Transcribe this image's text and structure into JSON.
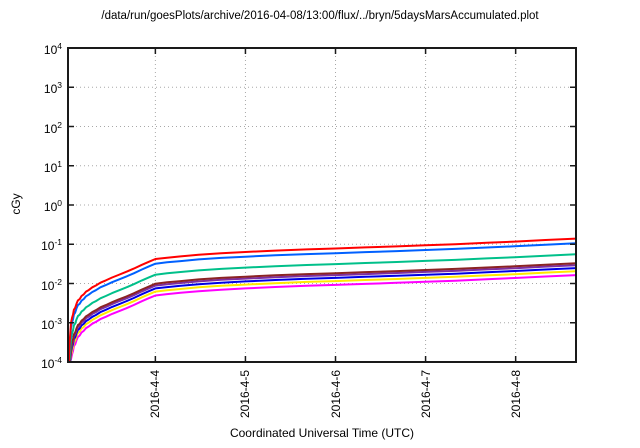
{
  "title": "/data/run/goesPlots/archive/2016-04-08/13:00/flux/../bryn/5daysMarsAccumulated.plot",
  "chart_data": {
    "type": "line",
    "title": "/data/run/goesPlots/archive/2016-04-08/13:00/flux/../bryn/5daysMarsAccumulated.plot",
    "xlabel": "Coordinated Universal Time (UTC)",
    "ylabel": "cGy",
    "y_scale": "log",
    "ylim": [
      0.0001,
      10000.0
    ],
    "y_tick_exponents": [
      4,
      3,
      2,
      1,
      0,
      -1,
      -2,
      -3,
      -4
    ],
    "x_ticks": [
      {
        "label": "2016-4-4",
        "t_days": 0.97
      },
      {
        "label": "2016-4-5",
        "t_days": 1.97
      },
      {
        "label": "2016-4-6",
        "t_days": 2.97
      },
      {
        "label": "2016-4-7",
        "t_days": 3.97
      },
      {
        "label": "2016-4-8",
        "t_days": 4.97
      }
    ],
    "xlim_days": [
      0,
      5.64
    ],
    "grid": "dotted",
    "legend": "none",
    "x_days": [
      0.01,
      0.018,
      0.025,
      0.033,
      0.045,
      0.055,
      0.065,
      0.08,
      0.095,
      0.11,
      0.13,
      0.15,
      0.175,
      0.2,
      0.23,
      0.27,
      0.31,
      0.36,
      0.42,
      0.49,
      0.56,
      0.64,
      0.73,
      0.82,
      0.9,
      0.97,
      1.1,
      1.25,
      1.45,
      1.7,
      1.97,
      2.3,
      2.65,
      2.97,
      3.3,
      3.65,
      3.97,
      4.3,
      4.65,
      4.96,
      5.3,
      5.64
    ],
    "series": [
      {
        "name": "red",
        "color": "#ff0000",
        "values": [
          0.0001,
          0.0003,
          0.00055,
          0.001,
          0.00135,
          0.0016,
          0.00215,
          0.0024,
          0.0031,
          0.0037,
          0.004,
          0.0048,
          0.0053,
          0.0062,
          0.0068,
          0.008,
          0.0089,
          0.0105,
          0.012,
          0.0142,
          0.0165,
          0.0195,
          0.024,
          0.03,
          0.036,
          0.042,
          0.0455,
          0.049,
          0.054,
          0.059,
          0.0635,
          0.069,
          0.074,
          0.078,
          0.083,
          0.088,
          0.094,
          0.1,
          0.109,
          0.117,
          0.128,
          0.139
        ]
      },
      {
        "name": "blue",
        "color": "#0060ff",
        "values": [
          7.6e-05,
          0.000228,
          0.000418,
          0.00076,
          0.00103,
          0.00122,
          0.00163,
          0.00182,
          0.00236,
          0.00281,
          0.00304,
          0.00365,
          0.00403,
          0.00471,
          0.00517,
          0.00608,
          0.00676,
          0.00798,
          0.00912,
          0.0108,
          0.0125,
          0.0148,
          0.0182,
          0.0228,
          0.0274,
          0.0319,
          0.0346,
          0.0372,
          0.041,
          0.0448,
          0.0483,
          0.0524,
          0.0562,
          0.0593,
          0.0631,
          0.0669,
          0.0714,
          0.076,
          0.0828,
          0.0889,
          0.0973,
          0.106
        ]
      },
      {
        "name": "green",
        "color": "#00c08a",
        "values": [
          4e-05,
          0.00012,
          0.00022,
          0.0004,
          0.00054,
          0.00064,
          0.00086,
          0.00096,
          0.00124,
          0.00148,
          0.0016,
          0.00192,
          0.00212,
          0.00248,
          0.00272,
          0.0032,
          0.00356,
          0.0042,
          0.0048,
          0.00568,
          0.0066,
          0.0078,
          0.0096,
          0.012,
          0.0144,
          0.0168,
          0.0182,
          0.0196,
          0.0216,
          0.0236,
          0.0254,
          0.0276,
          0.0296,
          0.0312,
          0.0332,
          0.0352,
          0.0376,
          0.04,
          0.0436,
          0.0468,
          0.0512,
          0.0556
        ]
      },
      {
        "name": "dark-red",
        "color": "#8b2323",
        "values": [
          2.35e-05,
          7.05e-05,
          0.000129,
          0.000235,
          0.000317,
          0.000376,
          0.000505,
          0.000564,
          0.000729,
          0.00087,
          0.00094,
          0.00113,
          0.00125,
          0.00146,
          0.0016,
          0.00188,
          0.00209,
          0.00247,
          0.00282,
          0.00334,
          0.00388,
          0.00458,
          0.00564,
          0.00705,
          0.00846,
          0.00987,
          0.0107,
          0.0115,
          0.0127,
          0.0139,
          0.0149,
          0.0162,
          0.0174,
          0.0183,
          0.0195,
          0.0207,
          0.0221,
          0.0235,
          0.0256,
          0.0275,
          0.0301,
          0.0327
        ]
      },
      {
        "name": "purple",
        "color": "#7d2ea0",
        "values": [
          2.1e-05,
          6.3e-05,
          0.000116,
          0.00021,
          0.000284,
          0.000336,
          0.000452,
          0.000504,
          0.000651,
          0.000777,
          0.00084,
          0.00101,
          0.00111,
          0.0013,
          0.00143,
          0.00168,
          0.00187,
          0.00221,
          0.00252,
          0.00298,
          0.00347,
          0.0041,
          0.00504,
          0.0063,
          0.00756,
          0.00882,
          0.00956,
          0.0103,
          0.0113,
          0.0124,
          0.0133,
          0.0145,
          0.0155,
          0.0164,
          0.0174,
          0.0185,
          0.0197,
          0.021,
          0.0229,
          0.0246,
          0.0269,
          0.0292
        ]
      },
      {
        "name": "dark-blue",
        "color": "#0000e6",
        "values": [
          1.78e-05,
          5.34e-05,
          9.79e-05,
          0.000178,
          0.00024,
          0.000285,
          0.000383,
          0.000427,
          0.000552,
          0.000659,
          0.000712,
          0.000854,
          0.000943,
          0.0011,
          0.00121,
          0.00142,
          0.00158,
          0.00187,
          0.00214,
          0.00253,
          0.00294,
          0.00347,
          0.00427,
          0.00534,
          0.00641,
          0.00748,
          0.0081,
          0.00872,
          0.00961,
          0.0105,
          0.0113,
          0.0123,
          0.0132,
          0.0139,
          0.0148,
          0.0157,
          0.0167,
          0.0178,
          0.0194,
          0.0208,
          0.0228,
          0.0247
        ]
      },
      {
        "name": "yellow",
        "color": "#ffe800",
        "values": [
          1.48e-05,
          4.44e-05,
          8.14e-05,
          0.000148,
          0.0002,
          0.000237,
          0.000318,
          0.000355,
          0.000459,
          0.000548,
          0.000592,
          0.00071,
          0.000784,
          0.000918,
          0.00101,
          0.00118,
          0.00132,
          0.00155,
          0.00178,
          0.0021,
          0.00244,
          0.00289,
          0.00355,
          0.00444,
          0.00533,
          0.00622,
          0.00673,
          0.00725,
          0.00799,
          0.00873,
          0.0094,
          0.0102,
          0.011,
          0.0115,
          0.0123,
          0.013,
          0.0139,
          0.0148,
          0.0161,
          0.0173,
          0.0189,
          0.0206
        ]
      },
      {
        "name": "magenta",
        "color": "#ff00ff",
        "values": [
          1.18e-05,
          3.54e-05,
          6.49e-05,
          0.000118,
          0.000159,
          0.000189,
          0.000254,
          0.000283,
          0.000366,
          0.000437,
          0.000472,
          0.000566,
          0.000625,
          0.000732,
          0.000802,
          0.000944,
          0.00105,
          0.00124,
          0.00142,
          0.00168,
          0.00195,
          0.0023,
          0.00283,
          0.00354,
          0.00425,
          0.00496,
          0.00537,
          0.00578,
          0.00637,
          0.00696,
          0.00749,
          0.00814,
          0.00873,
          0.0092,
          0.00979,
          0.0104,
          0.0111,
          0.0118,
          0.0129,
          0.0138,
          0.0151,
          0.0164
        ]
      }
    ],
    "style": {
      "frame_color": "#1a1a1a",
      "grid_color": "#a8a8a8",
      "background": "#ffffff",
      "line_width": 2
    }
  }
}
